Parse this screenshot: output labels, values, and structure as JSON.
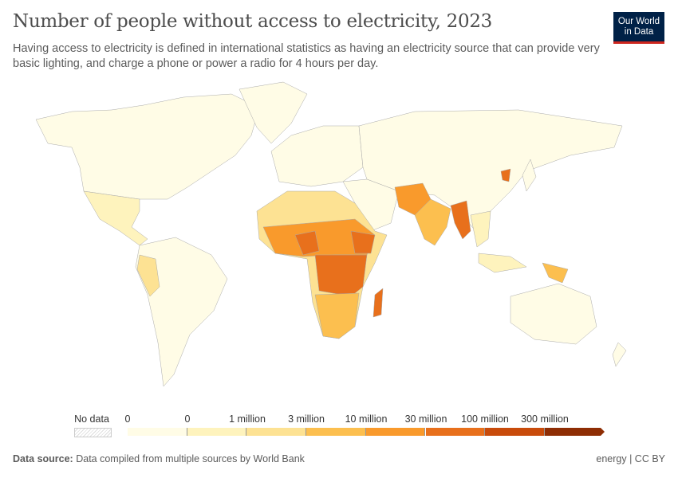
{
  "header": {
    "title": "Number of people without access to electricity, 2023",
    "subtitle": "Having access to electricity is defined in international statistics as having an electricity source that can provide very basic lighting, and charge a phone or power a radio for 4 hours per day.",
    "logo_text": "Our World in Data"
  },
  "legend": {
    "no_data_label": "No data",
    "labels": [
      "0",
      "0",
      "1 million",
      "3 million",
      "10 million",
      "30 million",
      "100 million",
      "300 million"
    ],
    "colors": [
      "#fffce6",
      "#fef3bd",
      "#fde293",
      "#fcbf4f",
      "#f99a2c",
      "#e8701c",
      "#c84b0b",
      "#8e2d04"
    ]
  },
  "footer": {
    "source_label": "Data source:",
    "source_text": "Data compiled from multiple sources by World Bank",
    "right_text": "energy | CC BY"
  }
}
